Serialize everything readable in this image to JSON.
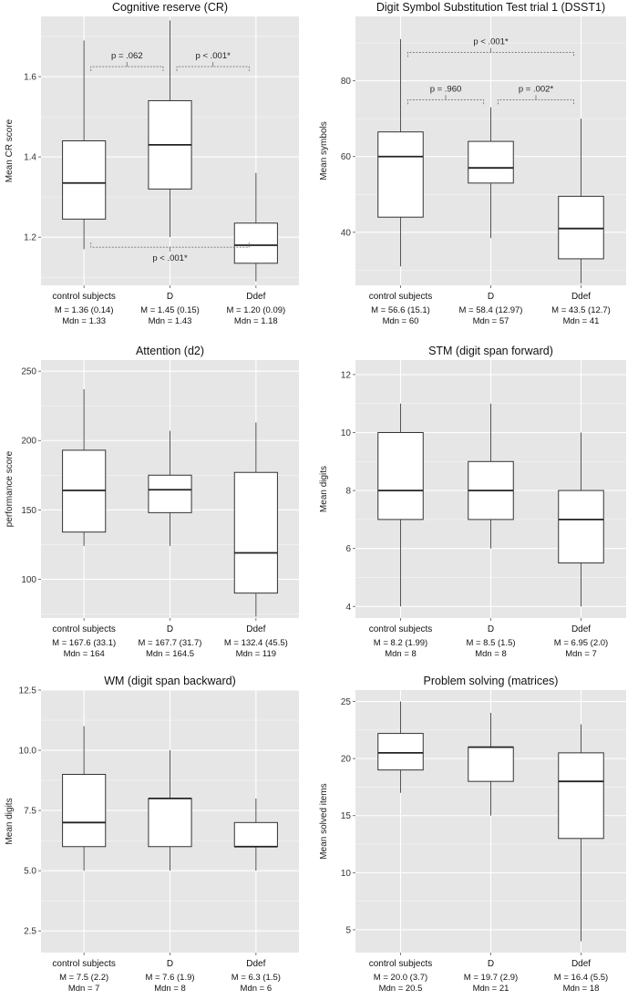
{
  "colors": {
    "panel_bg": "#e6e6e6",
    "grid": "#ffffff",
    "box_fill": "#ffffff",
    "box_stroke": "#333333",
    "whisker": "#555555",
    "bracket": "#777777"
  },
  "chart_data": [
    {
      "type": "box",
      "title": "Cognitive reserve (CR)",
      "ylabel": "Mean CR score",
      "ylim": [
        1.08,
        1.75
      ],
      "yticks": [
        1.2,
        1.4,
        1.6
      ],
      "ytick_labels": [
        "1.2",
        "1.4",
        "1.6"
      ],
      "categories": [
        "control subjects",
        "D",
        "Ddef"
      ],
      "boxes": [
        {
          "low": 1.17,
          "q1": 1.245,
          "median": 1.335,
          "q3": 1.44,
          "high": 1.69
        },
        {
          "low": 1.2,
          "q1": 1.32,
          "median": 1.43,
          "q3": 1.54,
          "high": 1.74
        },
        {
          "low": 1.09,
          "q1": 1.135,
          "median": 1.18,
          "q3": 1.235,
          "high": 1.36
        }
      ],
      "stats": [
        {
          "mean": "M = 1.36 (0.14)",
          "median": "Mdn = 1.33"
        },
        {
          "mean": "M = 1.45 (0.15)",
          "median": "Mdn = 1.43"
        },
        {
          "mean": "M = 1.20 (0.09)",
          "median": "Mdn = 1.18"
        }
      ],
      "brackets": [
        {
          "from": 0,
          "to": 1,
          "y": 1.625,
          "dir": "up",
          "label": "p = .062"
        },
        {
          "from": 1,
          "to": 2,
          "y": 1.625,
          "dir": "up",
          "label": "p < .001*"
        },
        {
          "from": 0,
          "to": 2,
          "y": 1.175,
          "dir": "down",
          "label": "p < .001*"
        }
      ]
    },
    {
      "type": "box",
      "title": "Digit Symbol Substitution Test trial 1 (DSST1)",
      "ylabel": "Mean symbols",
      "ylim": [
        26,
        97
      ],
      "yticks": [
        40,
        60,
        80
      ],
      "ytick_labels": [
        "40",
        "60",
        "80"
      ],
      "categories": [
        "control subjects",
        "D",
        "Ddef"
      ],
      "boxes": [
        {
          "low": 31,
          "q1": 44,
          "median": 60,
          "q3": 66.5,
          "high": 91
        },
        {
          "low": 38.5,
          "q1": 53,
          "median": 57,
          "q3": 64,
          "high": 73
        },
        {
          "low": 26.5,
          "q1": 33,
          "median": 41,
          "q3": 49.5,
          "high": 70
        }
      ],
      "stats": [
        {
          "mean": "M = 56.6 (15.1)",
          "median": "Mdn = 60"
        },
        {
          "mean": "M = 58.4 (12.97)",
          "median": "Mdn = 57"
        },
        {
          "mean": "M = 43.5 (12.7)",
          "median": "Mdn = 41"
        }
      ],
      "brackets": [
        {
          "from": 0,
          "to": 1,
          "y": 75,
          "dir": "up",
          "label": "p = .960"
        },
        {
          "from": 1,
          "to": 2,
          "y": 75,
          "dir": "up",
          "label": "p = .002*"
        },
        {
          "from": 0,
          "to": 2,
          "y": 87.5,
          "dir": "up",
          "label": "p < .001*"
        }
      ]
    },
    {
      "type": "box",
      "title": "Attention (d2)",
      "ylabel": "performance score",
      "ylim": [
        72,
        258
      ],
      "yticks": [
        100,
        150,
        200,
        250
      ],
      "ytick_labels": [
        "100",
        "150",
        "200",
        "250"
      ],
      "categories": [
        "control subjects",
        "D",
        "Ddef"
      ],
      "boxes": [
        {
          "low": 124,
          "q1": 134,
          "median": 164,
          "q3": 193,
          "high": 237
        },
        {
          "low": 124,
          "q1": 148,
          "median": 164.5,
          "q3": 175,
          "high": 207
        },
        {
          "low": 73,
          "q1": 90,
          "median": 119,
          "q3": 177,
          "high": 213
        }
      ],
      "stats": [
        {
          "mean": "M = 167.6 (33.1)",
          "median": "Mdn = 164"
        },
        {
          "mean": "M = 167.7 (31.7)",
          "median": "Mdn = 164.5"
        },
        {
          "mean": "M = 132.4 (45.5)",
          "median": "Mdn = 119"
        }
      ],
      "brackets": []
    },
    {
      "type": "box",
      "title": "STM (digit span forward)",
      "ylabel": "Mean digits",
      "ylim": [
        3.6,
        12.5
      ],
      "yticks": [
        4,
        6,
        8,
        10,
        12
      ],
      "ytick_labels": [
        "4",
        "6",
        "8",
        "10",
        "12"
      ],
      "categories": [
        "control subjects",
        "D",
        "Ddef"
      ],
      "boxes": [
        {
          "low": 4,
          "q1": 7,
          "median": 8,
          "q3": 10,
          "high": 11
        },
        {
          "low": 6,
          "q1": 7,
          "median": 8,
          "q3": 9,
          "high": 11
        },
        {
          "low": 4,
          "q1": 5.5,
          "median": 7,
          "q3": 8,
          "high": 10
        }
      ],
      "stats": [
        {
          "mean": "M = 8.2 (1.99)",
          "median": "Mdn = 8"
        },
        {
          "mean": "M = 8.5 (1.5)",
          "median": "Mdn = 8"
        },
        {
          "mean": "M = 6.95 (2.0)",
          "median": "Mdn = 7"
        }
      ],
      "brackets": []
    },
    {
      "type": "box",
      "title": "WM (digit span backward)",
      "ylabel": "Mean digits",
      "ylim": [
        1.6,
        12.5
      ],
      "yticks": [
        2.5,
        5.0,
        7.5,
        10.0,
        12.5
      ],
      "ytick_labels": [
        "2.5",
        "5.0",
        "7.5",
        "10.0",
        "12.5"
      ],
      "categories": [
        "control subjects",
        "D",
        "Ddef"
      ],
      "boxes": [
        {
          "low": 5,
          "q1": 6,
          "median": 7,
          "q3": 9,
          "high": 11
        },
        {
          "low": 5,
          "q1": 6,
          "median": 8,
          "q3": 8,
          "high": 10
        },
        {
          "low": 5,
          "q1": 6,
          "median": 6,
          "q3": 7,
          "high": 8
        }
      ],
      "stats": [
        {
          "mean": "M = 7.5 (2.2)",
          "median": "Mdn = 7"
        },
        {
          "mean": "M = 7.6 (1.9)",
          "median": "Mdn = 8"
        },
        {
          "mean": "M = 6.3 (1.5)",
          "median": "Mdn = 6"
        }
      ],
      "brackets": []
    },
    {
      "type": "box",
      "title": "Problem solving (matrices)",
      "ylabel": "Mean solved items",
      "ylim": [
        3,
        26
      ],
      "yticks": [
        5,
        10,
        15,
        20,
        25
      ],
      "ytick_labels": [
        "5",
        "10",
        "15",
        "20",
        "25"
      ],
      "categories": [
        "control subjects",
        "D",
        "Ddef"
      ],
      "boxes": [
        {
          "low": 17,
          "q1": 19,
          "median": 20.5,
          "q3": 22.2,
          "high": 25
        },
        {
          "low": 15,
          "q1": 18,
          "median": 21,
          "q3": 21,
          "high": 24
        },
        {
          "low": 4,
          "q1": 13,
          "median": 18,
          "q3": 20.5,
          "high": 23
        }
      ],
      "stats": [
        {
          "mean": "M = 20.0 (3.7)",
          "median": "Mdn = 20.5"
        },
        {
          "mean": "M = 19.7 (2.9)",
          "median": "Mdn = 21"
        },
        {
          "mean": "M = 16.4 (5.5)",
          "median": "Mdn = 18"
        }
      ],
      "brackets": []
    }
  ]
}
